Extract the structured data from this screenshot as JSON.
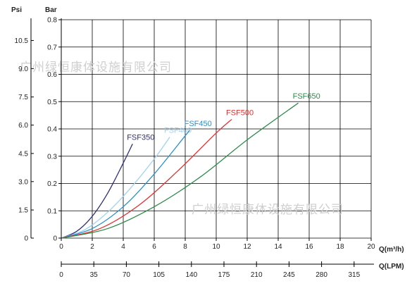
{
  "chart_data": {
    "type": "line",
    "title": "",
    "x_axis": {
      "label": "Q(m³/h)",
      "range": [
        0,
        20
      ],
      "ticks": [
        "0",
        "2",
        "4",
        "6",
        "8",
        "10",
        "12",
        "14",
        "16",
        "18",
        "20"
      ]
    },
    "x2_axis": {
      "label": "Q(LPM)",
      "ticks": [
        "0",
        "35",
        "70",
        "105",
        "140",
        "175",
        "210",
        "245",
        "280",
        "315"
      ],
      "values_m3h": [
        0,
        2.1,
        4.2,
        6.3,
        8.4,
        10.5,
        12.6,
        14.7,
        16.8,
        18.9
      ]
    },
    "y_axis": {
      "label": "Bar",
      "range": [
        0,
        0.8
      ],
      "ticks": [
        "0",
        "0.1",
        "0.2",
        "0.3",
        "0.4",
        "0.5",
        "0.6",
        "0.7",
        "0.8"
      ]
    },
    "y2_axis": {
      "label": "Psi",
      "ticks": [
        "0",
        "1.5",
        "3.0",
        "4.5",
        "6.0",
        "7.5",
        "9.0",
        "10.5"
      ],
      "values_bar": [
        0,
        0.103,
        0.207,
        0.31,
        0.414,
        0.517,
        0.621,
        0.724
      ]
    },
    "grid": true,
    "series": [
      {
        "name": "FSF350",
        "color": "#2e2e7a",
        "x": [
          0,
          1,
          2,
          3,
          4,
          4.6
        ],
        "y": [
          0,
          0.025,
          0.08,
          0.165,
          0.275,
          0.345
        ]
      },
      {
        "name": "FSF400",
        "color": "#9fd3ee",
        "x": [
          0,
          1.5,
          3,
          4.5,
          6,
          7.0
        ],
        "y": [
          0,
          0.03,
          0.095,
          0.185,
          0.29,
          0.37
        ]
      },
      {
        "name": "FSF450",
        "color": "#2a8fd0",
        "x": [
          0,
          2,
          4,
          6,
          8,
          8.3
        ],
        "y": [
          0,
          0.035,
          0.115,
          0.235,
          0.375,
          0.395
        ]
      },
      {
        "name": "FSF500",
        "color": "#e03030",
        "x": [
          0,
          2.5,
          5,
          7.5,
          10,
          11.0
        ],
        "y": [
          0,
          0.035,
          0.12,
          0.245,
          0.385,
          0.435
        ]
      },
      {
        "name": "FSF650",
        "color": "#2e8b4a",
        "x": [
          0,
          3,
          6,
          9,
          12,
          15.3
        ],
        "y": [
          0,
          0.035,
          0.115,
          0.225,
          0.36,
          0.495
        ]
      }
    ],
    "watermarks": [
      "广州绿恒康体设施有限公司",
      "广州绿恒康体设施有限公司"
    ]
  }
}
